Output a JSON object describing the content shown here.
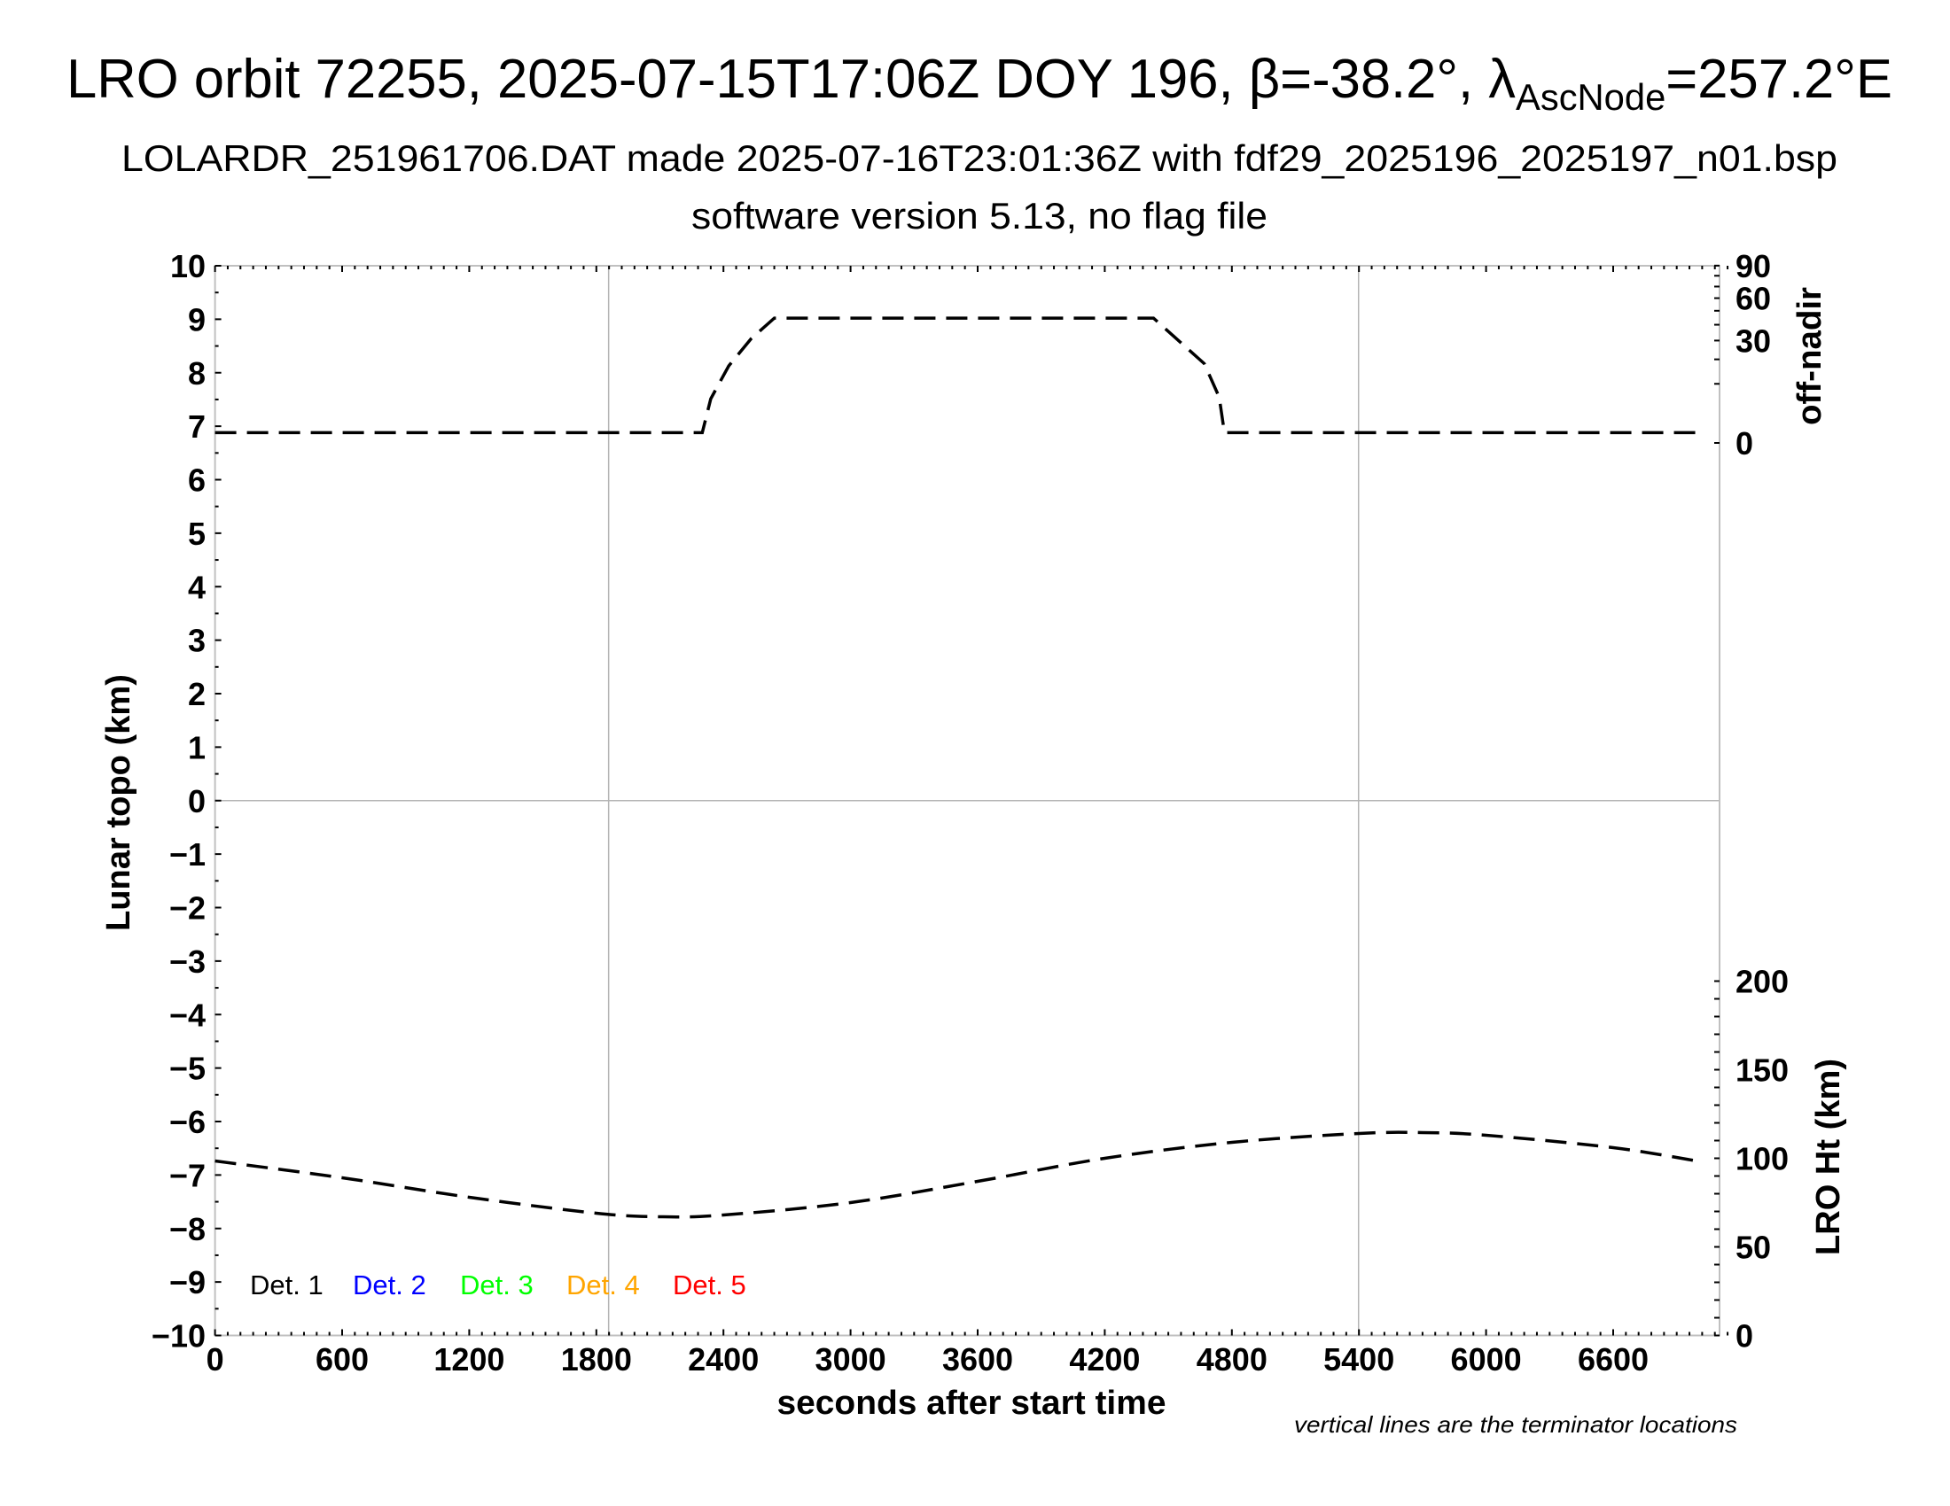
{
  "header": {
    "title_main": "LRO orbit 72255, 2025-07-15T17:06Z DOY 196, β=-38.2°, λ",
    "title_sub": "AscNode",
    "title_end": "=257.2°E",
    "subtitle": "LOLARDR_251961706.DAT made 2025-07-16T23:01:36Z with fdf29_2025196_2025197_n01.bsp",
    "software": "software version 5.13, no flag file"
  },
  "chart_data": {
    "type": "line",
    "xlabel": "seconds after start time",
    "xlim": [
      0,
      7140
    ],
    "x_ticks": [
      "0",
      "600",
      "1200",
      "1800",
      "2400",
      "3000",
      "3600",
      "4200",
      "4800",
      "5400",
      "6000",
      "6600"
    ],
    "ylabel_left": "Lunar topo (km)",
    "ylim_left": [
      -10,
      10
    ],
    "y_ticks_left": [
      "10",
      "9",
      "8",
      "7",
      "6",
      "5",
      "4",
      "3",
      "2",
      "1",
      "0",
      "−1",
      "−2",
      "−3",
      "−4",
      "−5",
      "−6",
      "−7",
      "−8",
      "−9",
      "−10"
    ],
    "ylabel_right_top": "off-nadir",
    "right_top_scale": "sqrt",
    "right_top_lim": [
      0,
      90
    ],
    "right_top_ticks": [
      "90",
      "60",
      "30",
      "0"
    ],
    "ylabel_right_bottom": "LRO Ht (km)",
    "right_bottom_lim": [
      0,
      200
    ],
    "right_bottom_ticks": [
      "200",
      "150",
      "100",
      "50",
      "0"
    ],
    "grid": false,
    "zero_line": true,
    "terminators": [
      1858,
      5398
    ],
    "legend_position": "bottom-left",
    "legend": [
      {
        "label": "Det. 1",
        "color": "#000000"
      },
      {
        "label": "Det. 2",
        "color": "#0000ff"
      },
      {
        "label": "Det. 3",
        "color": "#00ff00"
      },
      {
        "label": "Det. 4",
        "color": "#ffa500"
      },
      {
        "label": "Det. 5",
        "color": "#ff0000"
      }
    ],
    "series": [
      {
        "axis": "off-nadir",
        "style": "dashed",
        "color": "#000000",
        "x": [
          0,
          2300,
          2340,
          2425,
          2530,
          2640,
          4430,
          4530,
          4670,
          4740,
          4765,
          7020
        ],
        "y": [
          0.3,
          0.3,
          5.6,
          17,
          31,
          44.6,
          44.6,
          32,
          18,
          6,
          0.3,
          0.3
        ]
      },
      {
        "axis": "LRO Ht (km)",
        "style": "dashed",
        "color": "#000000",
        "x": [
          0,
          600,
          1200,
          1800,
          2100,
          2400,
          3000,
          3600,
          4200,
          4800,
          5400,
          5700,
          6000,
          6600,
          7020
        ],
        "y": [
          98.5,
          89,
          78,
          69,
          67,
          68,
          75,
          87,
          100,
          109,
          114,
          114.5,
          113,
          106,
          98
        ]
      }
    ],
    "note": "vertical lines are the terminator locations"
  }
}
